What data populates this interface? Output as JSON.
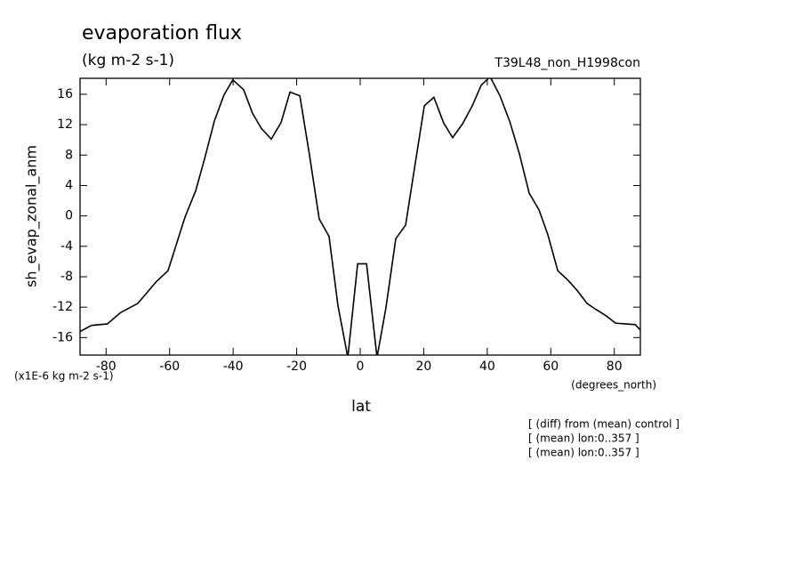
{
  "chart_data": {
    "type": "line",
    "title": "evaporation flux",
    "subtitle": "(kg m-2 s-1)",
    "run_label": "T39L48_non_H1998con",
    "y_label": "sh_evap_zonal_anm",
    "y_unit": "(x1E-6 kg m-2 s-1)",
    "x_unit": "(degrees_north)",
    "x_label": "lat",
    "notes": [
      "[ (diff) from (mean) control ]",
      "[ (mean) lon:0..357 ]",
      "[ (mean) lon:0..357 ]"
    ],
    "x": [
      -88.2,
      -84.6,
      -79.6,
      -75.4,
      -70.0,
      -64.1,
      -60.5,
      -55.2,
      -51.8,
      -49.0,
      -45.9,
      -42.9,
      -40.1,
      -36.7,
      -33.9,
      -31.1,
      -28.0,
      -24.9,
      -22.1,
      -19.0,
      -16.0,
      -12.9,
      -9.8,
      -7.0,
      -3.9,
      -0.8,
      2.0,
      5.3,
      8.1,
      11.2,
      14.3,
      17.1,
      20.2,
      23.2,
      26.3,
      29.1,
      32.2,
      35.3,
      38.1,
      40.9,
      44.0,
      47.1,
      50.1,
      53.2,
      56.3,
      59.1,
      62.2,
      65.3,
      68.3,
      71.4,
      74.2,
      77.3,
      80.4,
      83.5,
      86.6,
      88.2
    ],
    "series": [
      {
        "name": "sh_evap_zonal_anm",
        "color": "#000000",
        "values": [
          -15.2,
          -14.4,
          -14.2,
          -12.7,
          -11.5,
          -8.6,
          -7.2,
          -0.2,
          3.3,
          7.5,
          12.5,
          15.9,
          17.9,
          16.6,
          13.5,
          11.5,
          10.1,
          12.3,
          16.3,
          15.8,
          8.1,
          -0.4,
          -2.7,
          -11.8,
          -18.6,
          -6.3,
          -6.3,
          -18.6,
          -12.1,
          -3.0,
          -1.2,
          6.3,
          14.5,
          15.6,
          12.2,
          10.3,
          12.1,
          14.5,
          17.2,
          18.3,
          15.8,
          12.4,
          8.2,
          3.0,
          0.8,
          -2.5,
          -7.2,
          -8.4,
          -9.8,
          -11.5,
          -12.3,
          -13.1,
          -14.1,
          -14.2,
          -14.3,
          -15.0
        ]
      }
    ],
    "xlim": [
      -88.2,
      88.2
    ],
    "ylim": [
      -18.3,
      18.1
    ],
    "xticks": [
      -80,
      -60,
      -40,
      -20,
      0,
      20,
      40,
      60,
      80
    ],
    "yticks": [
      -16,
      -12,
      -8,
      -4,
      0,
      4,
      8,
      12,
      16
    ]
  }
}
